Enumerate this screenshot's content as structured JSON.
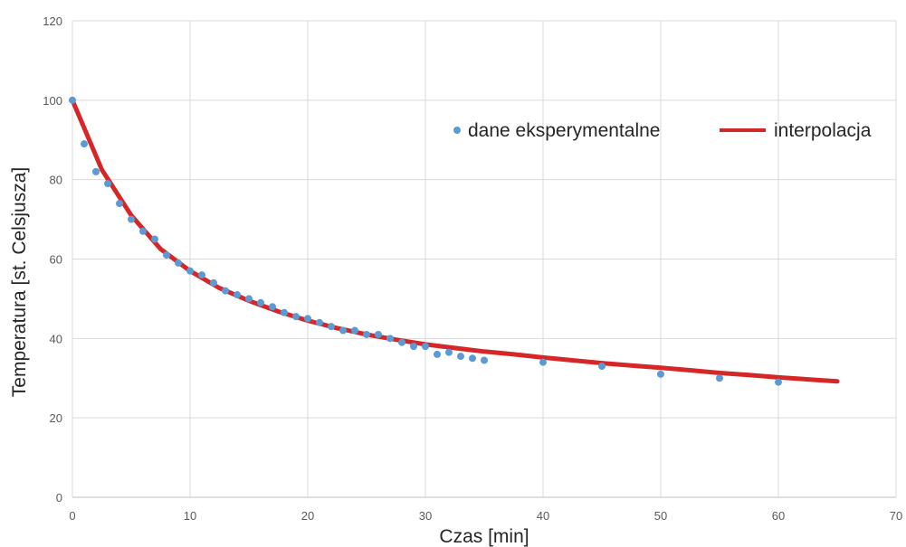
{
  "chart_data": {
    "type": "scatter",
    "title": "",
    "xlabel": "Czas [min]",
    "ylabel": "Temperatura [st. Celsjusza]",
    "xlim": [
      0,
      70
    ],
    "ylim": [
      0,
      120
    ],
    "xticks": [
      "0",
      "10",
      "20",
      "30",
      "40",
      "50",
      "60",
      "70"
    ],
    "yticks": [
      "0",
      "20",
      "40",
      "60",
      "80",
      "100",
      "120"
    ],
    "grid": true,
    "legend_position": "top-right",
    "series": [
      {
        "name": "dane eksperymentalne",
        "kind": "scatter",
        "color": "#5b9bd5",
        "x": [
          0,
          1,
          2,
          3,
          4,
          5,
          6,
          7,
          8,
          9,
          10,
          11,
          12,
          13,
          14,
          15,
          16,
          17,
          18,
          19,
          20,
          21,
          22,
          23,
          24,
          25,
          26,
          27,
          28,
          29,
          30,
          31,
          32,
          33,
          34,
          35,
          40,
          45,
          50,
          55,
          60
        ],
        "y": [
          100,
          89,
          82,
          79,
          74,
          70,
          67,
          65,
          61,
          59,
          57,
          56,
          54,
          52,
          51,
          50,
          49,
          48,
          46.5,
          45.5,
          45,
          44,
          43,
          42,
          42,
          41,
          41,
          40,
          39,
          38,
          38,
          36,
          36.5,
          35.5,
          35,
          34.5,
          34,
          33,
          31,
          30,
          29
        ]
      },
      {
        "name": "interpolacja",
        "kind": "line",
        "color": "#d62728",
        "x": [
          0,
          2.5,
          5,
          7.5,
          10,
          12.5,
          15,
          17.5,
          20,
          22.5,
          25,
          27.5,
          30,
          32.5,
          35,
          37.5,
          40,
          42.5,
          45,
          47.5,
          50,
          52.5,
          55,
          57.5,
          60,
          62.5,
          65
        ],
        "y": [
          100,
          82.5,
          71,
          62.5,
          57,
          52.7,
          49.5,
          46.8,
          44.5,
          42.6,
          41,
          39.7,
          38.5,
          37.6,
          36.7,
          36,
          35.2,
          34.5,
          33.8,
          33.2,
          32.6,
          32,
          31.3,
          30.8,
          30.2,
          29.7,
          29.2
        ]
      }
    ]
  }
}
